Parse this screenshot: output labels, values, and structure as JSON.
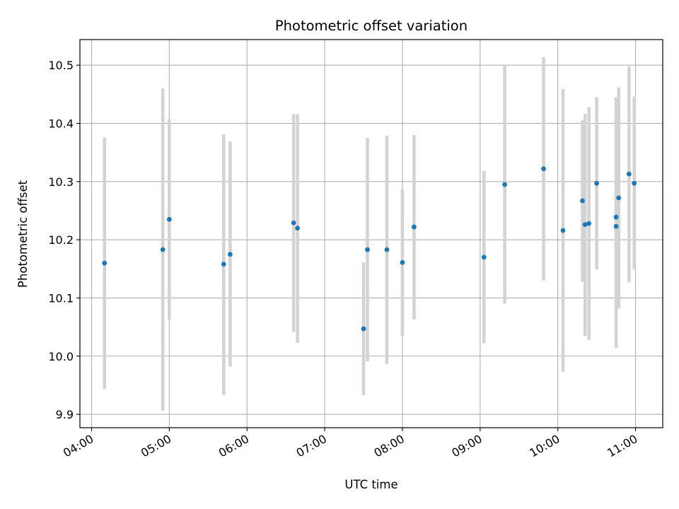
{
  "chart_data": {
    "type": "scatter",
    "title": "Photometric offset variation",
    "xlabel": "UTC time",
    "ylabel": "Photometric offset",
    "x_axis": {
      "kind": "time",
      "range": [
        "03:51",
        "11:21"
      ],
      "ticks": [
        "04:00",
        "05:00",
        "06:00",
        "07:00",
        "08:00",
        "09:00",
        "10:00",
        "11:00"
      ]
    },
    "y_axis": {
      "range": [
        9.877,
        10.544
      ],
      "ticks": [
        9.9,
        10.0,
        10.1,
        10.2,
        10.3,
        10.4,
        10.5
      ],
      "tick_labels": [
        "9.9",
        "10.0",
        "10.1",
        "10.2",
        "10.3",
        "10.4",
        "10.5"
      ]
    },
    "grid": true,
    "colors": {
      "marker": "#1f77b4",
      "errorbar": "#d3d3d3",
      "grid": "#b0b0b0"
    },
    "series": [
      {
        "points": [
          {
            "x": "04:10",
            "y": 10.16,
            "ylo": 9.944,
            "yhi": 10.376
          },
          {
            "x": "04:55",
            "y": 10.183,
            "ylo": 9.906,
            "yhi": 10.46
          },
          {
            "x": "05:00",
            "y": 10.235,
            "ylo": 10.063,
            "yhi": 10.407
          },
          {
            "x": "05:42",
            "y": 10.158,
            "ylo": 9.933,
            "yhi": 10.381
          },
          {
            "x": "05:47",
            "y": 10.175,
            "ylo": 9.982,
            "yhi": 10.369
          },
          {
            "x": "06:36",
            "y": 10.229,
            "ylo": 10.042,
            "yhi": 10.416
          },
          {
            "x": "06:39",
            "y": 10.22,
            "ylo": 10.023,
            "yhi": 10.416
          },
          {
            "x": "07:30",
            "y": 10.047,
            "ylo": 9.933,
            "yhi": 10.161
          },
          {
            "x": "07:33",
            "y": 10.183,
            "ylo": 9.991,
            "yhi": 10.375
          },
          {
            "x": "07:48",
            "y": 10.183,
            "ylo": 9.987,
            "yhi": 10.379
          },
          {
            "x": "08:00",
            "y": 10.161,
            "ylo": 10.035,
            "yhi": 10.287
          },
          {
            "x": "08:09",
            "y": 10.222,
            "ylo": 10.063,
            "yhi": 10.38
          },
          {
            "x": "09:03",
            "y": 10.17,
            "ylo": 10.022,
            "yhi": 10.318
          },
          {
            "x": "09:19",
            "y": 10.295,
            "ylo": 10.09,
            "yhi": 10.5
          },
          {
            "x": "09:49",
            "y": 10.322,
            "ylo": 10.13,
            "yhi": 10.514
          },
          {
            "x": "10:04",
            "y": 10.216,
            "ylo": 9.973,
            "yhi": 10.459
          },
          {
            "x": "10:19",
            "y": 10.267,
            "ylo": 10.128,
            "yhi": 10.405
          },
          {
            "x": "10:21",
            "y": 10.226,
            "ylo": 10.035,
            "yhi": 10.416
          },
          {
            "x": "10:24",
            "y": 10.228,
            "ylo": 10.028,
            "yhi": 10.428
          },
          {
            "x": "10:30",
            "y": 10.297,
            "ylo": 10.149,
            "yhi": 10.445
          },
          {
            "x": "10:45",
            "y": 10.239,
            "ylo": 10.033,
            "yhi": 10.445
          },
          {
            "x": "10:45",
            "y": 10.223,
            "ylo": 10.014,
            "yhi": 10.432
          },
          {
            "x": "10:47",
            "y": 10.272,
            "ylo": 10.082,
            "yhi": 10.462
          },
          {
            "x": "10:55",
            "y": 10.313,
            "ylo": 10.127,
            "yhi": 10.498
          },
          {
            "x": "10:59",
            "y": 10.297,
            "ylo": 10.149,
            "yhi": 10.446
          }
        ]
      }
    ]
  }
}
